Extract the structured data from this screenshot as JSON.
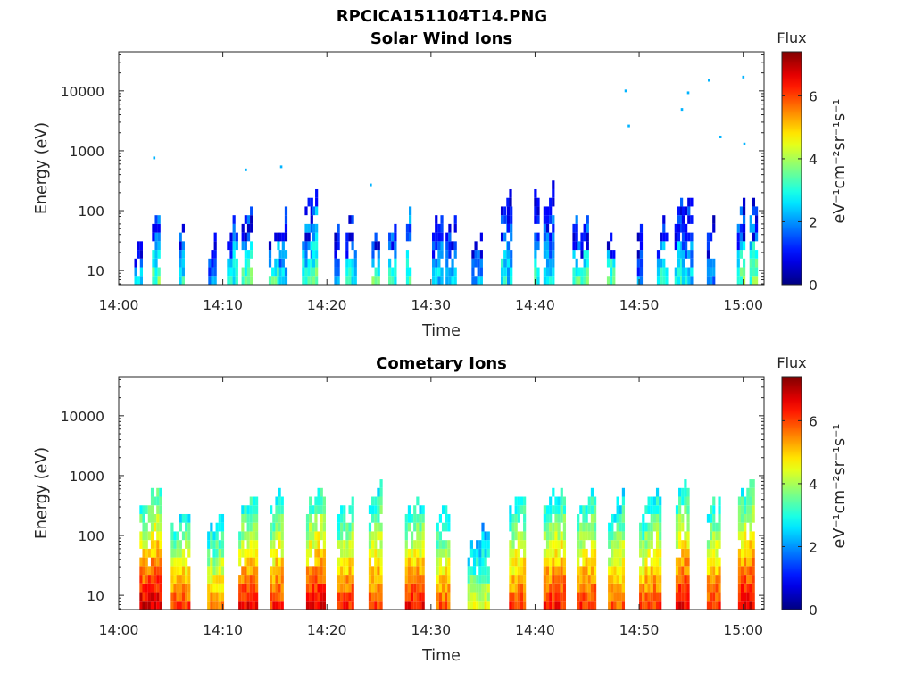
{
  "figure_title": "RPCICA151104T14.PNG",
  "chart_data": [
    {
      "type": "heatmap",
      "title": "Solar Wind Ions",
      "xlabel": "Time",
      "ylabel": "Energy (eV)",
      "x_range": [
        "14:00",
        "15:02"
      ],
      "xticks": [
        "14:00",
        "14:10",
        "14:20",
        "14:30",
        "14:40",
        "14:50",
        "15:00"
      ],
      "y_scale": "log",
      "y_range": [
        5.8,
        45000
      ],
      "yticks": [
        "10",
        "100",
        "1000",
        "10000"
      ],
      "colorbar": {
        "title": "Flux",
        "label": "eV⁻¹cm⁻²sr⁻¹s⁻¹",
        "range": [
          0,
          7.4
        ],
        "ticks": [
          "0",
          "2",
          "4",
          "6"
        ],
        "colormap": "jet"
      },
      "bursts_minutes": [
        1.5,
        3.2,
        5.8,
        8.6,
        10.4,
        11.8,
        14.4,
        15.4,
        17.6,
        18.6,
        20.7,
        21.8,
        24.3,
        25.9,
        27.6,
        30.1,
        31.4,
        33.9,
        36.7,
        37.3,
        39.9,
        40.8,
        43.6,
        44.1,
        46.9,
        49.8,
        51.7,
        53.4,
        54.1,
        56.5,
        59.4,
        60.6
      ],
      "burst_peak_energy_eV": [
        25,
        80,
        50,
        30,
        60,
        90,
        40,
        70,
        150,
        200,
        60,
        80,
        40,
        60,
        100,
        110,
        90,
        40,
        250,
        120,
        200,
        180,
        80,
        60,
        40,
        60,
        60,
        100,
        150,
        60,
        120,
        180
      ],
      "low_energy_flux": [
        2.5,
        3.5,
        3,
        2,
        3,
        3.5,
        3.5,
        2.5,
        3,
        3.5,
        2,
        3,
        3.5,
        3,
        3.5,
        2.5,
        2.5,
        2,
        3,
        2.5,
        3,
        2.5,
        3,
        3.5,
        3.5,
        1.8,
        3,
        3,
        2.5,
        2,
        3.5,
        3.5
      ],
      "sparse_points": [
        {
          "t": 48.6,
          "e": 10000
        },
        {
          "t": 48.9,
          "e": 2600
        },
        {
          "t": 54.0,
          "e": 4900
        },
        {
          "t": 54.6,
          "e": 9300
        },
        {
          "t": 56.6,
          "e": 15000
        },
        {
          "t": 57.7,
          "e": 1700
        },
        {
          "t": 59.9,
          "e": 17000
        },
        {
          "t": 60.0,
          "e": 1300
        },
        {
          "t": 3.3,
          "e": 760
        },
        {
          "t": 12.1,
          "e": 480
        },
        {
          "t": 15.5,
          "e": 540
        },
        {
          "t": 24.1,
          "e": 270
        }
      ]
    },
    {
      "type": "heatmap",
      "title": "Cometary Ions",
      "xlabel": "Time",
      "ylabel": "Energy (eV)",
      "x_range": [
        "14:00",
        "15:02"
      ],
      "xticks": [
        "14:00",
        "14:10",
        "14:20",
        "14:30",
        "14:40",
        "14:50",
        "15:00"
      ],
      "y_scale": "log",
      "y_range": [
        5.8,
        45000
      ],
      "yticks": [
        "10",
        "100",
        "1000",
        "10000"
      ],
      "colorbar": {
        "title": "Flux",
        "label": "eV⁻¹cm⁻²sr⁻¹s⁻¹",
        "range": [
          0,
          7.4
        ],
        "ticks": [
          "0",
          "2",
          "4",
          "6"
        ],
        "colormap": "jet"
      },
      "bursts_minutes": [
        2.0,
        5.0,
        8.5,
        11.5,
        14.5,
        18.0,
        21.0,
        24.0,
        27.5,
        30.5,
        33.5,
        37.5,
        40.8,
        44.0,
        47.0,
        50.0,
        53.5,
        56.5,
        59.5
      ],
      "burst_peak_energy_eV": [
        500,
        250,
        200,
        400,
        450,
        500,
        350,
        500,
        350,
        300,
        120,
        500,
        550,
        500,
        400,
        450,
        600,
        400,
        700
      ],
      "low_energy_flux": [
        6.8,
        6,
        5.5,
        6.5,
        6.2,
        6.6,
        6.2,
        6,
        6.4,
        5.8,
        4.5,
        6,
        6.3,
        6.2,
        5.8,
        6,
        6.6,
        6.2,
        6.7
      ]
    }
  ]
}
